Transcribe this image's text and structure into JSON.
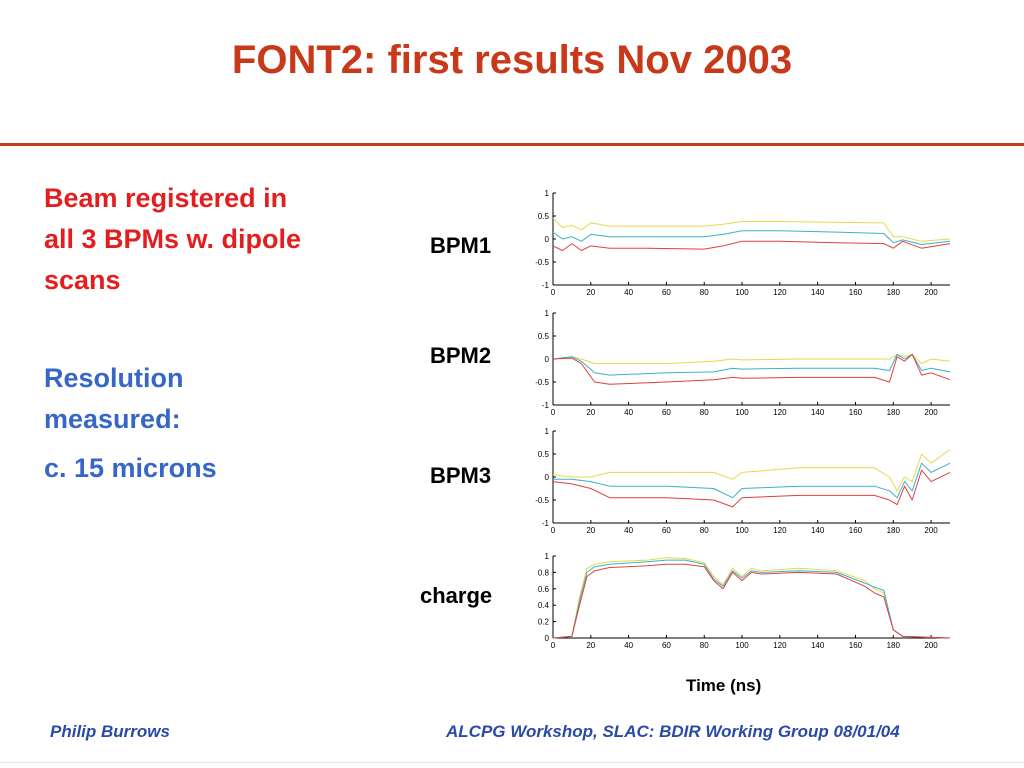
{
  "slide": {
    "title": "FONT2: first results Nov 2003",
    "bullet1": [
      "Beam registered in",
      "all 3 BPMs w. dipole",
      "scans"
    ],
    "bullet2": [
      "Resolution",
      "measured:"
    ],
    "bullet3": "c. 15 microns",
    "xlabel": "Time (ns)",
    "footer_left": "Philip Burrows",
    "footer_right": "ALCPG Workshop, SLAC: BDIR Working Group 08/01/04"
  },
  "colors": {
    "title": "#c8391a",
    "bullet_red": "#e41e1e",
    "bullet_blue": "#3767c6",
    "footer": "#2b4aa8"
  },
  "chart_data": [
    {
      "type": "line",
      "label": "BPM1",
      "xlim": [
        0,
        210
      ],
      "ylim": [
        -1,
        1
      ],
      "xticks": [
        0,
        20,
        40,
        60,
        80,
        100,
        120,
        140,
        160,
        180,
        200
      ],
      "yticks": [
        "1",
        "0.5",
        "0",
        "-0.5",
        "-1"
      ],
      "yticks_values": [
        1,
        0.5,
        0,
        -0.5,
        -1
      ],
      "series": [
        {
          "x": [
            0,
            5,
            10,
            15,
            20,
            30,
            50,
            80,
            90,
            100,
            120,
            150,
            175,
            180,
            185,
            195,
            210
          ],
          "y": [
            0.45,
            0.25,
            0.3,
            0.2,
            0.35,
            0.28,
            0.28,
            0.28,
            0.32,
            0.38,
            0.38,
            0.36,
            0.35,
            0.05,
            0.05,
            -0.05,
            0.0
          ]
        },
        {
          "x": [
            0,
            5,
            10,
            15,
            20,
            30,
            50,
            80,
            90,
            100,
            120,
            150,
            175,
            180,
            185,
            195,
            210
          ],
          "y": [
            0.15,
            0.0,
            0.05,
            -0.05,
            0.1,
            0.05,
            0.05,
            0.05,
            0.1,
            0.18,
            0.18,
            0.15,
            0.12,
            -0.08,
            -0.02,
            -0.12,
            -0.05
          ]
        },
        {
          "x": [
            0,
            5,
            10,
            15,
            20,
            30,
            50,
            80,
            90,
            100,
            120,
            150,
            175,
            180,
            185,
            195,
            210
          ],
          "y": [
            -0.15,
            -0.25,
            -0.1,
            -0.25,
            -0.15,
            -0.2,
            -0.2,
            -0.22,
            -0.15,
            -0.05,
            -0.05,
            -0.08,
            -0.1,
            -0.2,
            -0.05,
            -0.2,
            -0.1
          ]
        }
      ]
    },
    {
      "type": "line",
      "label": "BPM2",
      "xlim": [
        0,
        210
      ],
      "ylim": [
        -1,
        1
      ],
      "xticks": [
        0,
        20,
        40,
        60,
        80,
        100,
        120,
        140,
        160,
        180,
        200
      ],
      "yticks": [
        "1",
        "0.5",
        "0",
        "-0.5",
        "-1"
      ],
      "yticks_values": [
        1,
        0.5,
        0,
        -0.5,
        -1
      ],
      "series": [
        {
          "x": [
            0,
            10,
            15,
            22,
            30,
            60,
            85,
            95,
            100,
            130,
            170,
            178,
            182,
            186,
            190,
            195,
            200,
            210
          ],
          "y": [
            0.0,
            0.05,
            0.0,
            -0.1,
            -0.1,
            -0.1,
            -0.05,
            0.0,
            -0.02,
            0.0,
            0.0,
            0.0,
            0.1,
            0.05,
            0.1,
            -0.1,
            0.0,
            -0.05
          ]
        },
        {
          "x": [
            0,
            10,
            15,
            22,
            30,
            60,
            85,
            95,
            100,
            130,
            170,
            178,
            182,
            186,
            190,
            195,
            200,
            210
          ],
          "y": [
            0.0,
            0.05,
            -0.05,
            -0.3,
            -0.35,
            -0.3,
            -0.28,
            -0.2,
            -0.22,
            -0.2,
            -0.2,
            -0.25,
            0.1,
            0.0,
            0.1,
            -0.25,
            -0.2,
            -0.28
          ]
        },
        {
          "x": [
            0,
            10,
            15,
            22,
            30,
            60,
            85,
            95,
            100,
            130,
            170,
            178,
            182,
            186,
            190,
            195,
            200,
            210
          ],
          "y": [
            0.0,
            0.02,
            -0.1,
            -0.5,
            -0.55,
            -0.5,
            -0.45,
            -0.4,
            -0.42,
            -0.4,
            -0.4,
            -0.5,
            0.05,
            -0.05,
            0.1,
            -0.35,
            -0.3,
            -0.45
          ]
        }
      ]
    },
    {
      "type": "line",
      "label": "BPM3",
      "xlim": [
        0,
        210
      ],
      "ylim": [
        -1,
        1
      ],
      "xticks": [
        0,
        20,
        40,
        60,
        80,
        100,
        120,
        140,
        160,
        180,
        200
      ],
      "yticks": [
        "1",
        "0.5",
        "0",
        "-0.5",
        "-1"
      ],
      "yticks_values": [
        1,
        0.5,
        0,
        -0.5,
        -1
      ],
      "series": [
        {
          "x": [
            0,
            10,
            20,
            30,
            60,
            85,
            95,
            100,
            130,
            170,
            178,
            182,
            186,
            190,
            195,
            200,
            210
          ],
          "y": [
            0.05,
            0.0,
            0.0,
            0.1,
            0.1,
            0.1,
            -0.05,
            0.1,
            0.2,
            0.2,
            0.0,
            -0.3,
            0.0,
            -0.1,
            0.5,
            0.3,
            0.6
          ]
        },
        {
          "x": [
            0,
            10,
            20,
            30,
            60,
            85,
            95,
            100,
            130,
            170,
            178,
            182,
            186,
            190,
            195,
            200,
            210
          ],
          "y": [
            -0.05,
            -0.05,
            -0.1,
            -0.2,
            -0.2,
            -0.25,
            -0.45,
            -0.25,
            -0.2,
            -0.2,
            -0.3,
            -0.45,
            -0.1,
            -0.3,
            0.3,
            0.1,
            0.3
          ]
        },
        {
          "x": [
            0,
            10,
            20,
            30,
            60,
            85,
            95,
            100,
            130,
            170,
            178,
            182,
            186,
            190,
            195,
            200,
            210
          ],
          "y": [
            -0.1,
            -0.15,
            -0.25,
            -0.45,
            -0.45,
            -0.5,
            -0.65,
            -0.45,
            -0.4,
            -0.4,
            -0.5,
            -0.6,
            -0.2,
            -0.5,
            0.15,
            -0.1,
            0.1
          ]
        }
      ]
    },
    {
      "type": "line",
      "label": "charge",
      "xlim": [
        0,
        210
      ],
      "ylim": [
        0,
        1
      ],
      "xticks": [
        0,
        20,
        40,
        60,
        80,
        100,
        120,
        140,
        160,
        180,
        200
      ],
      "yticks": [
        "1",
        "0.8",
        "0.6",
        "0.4",
        "0.2",
        "0"
      ],
      "yticks_values": [
        1,
        0.8,
        0.6,
        0.4,
        0.2,
        0
      ],
      "series": [
        {
          "x": [
            0,
            10,
            14,
            18,
            22,
            30,
            50,
            60,
            70,
            80,
            85,
            90,
            95,
            100,
            105,
            110,
            130,
            150,
            165,
            170,
            175,
            180,
            185,
            210
          ],
          "y": [
            0.0,
            0.02,
            0.5,
            0.85,
            0.9,
            0.93,
            0.95,
            0.98,
            0.97,
            0.92,
            0.75,
            0.65,
            0.85,
            0.75,
            0.85,
            0.82,
            0.85,
            0.82,
            0.7,
            0.6,
            0.55,
            0.1,
            0.02,
            0.0
          ]
        },
        {
          "x": [
            0,
            10,
            14,
            18,
            22,
            30,
            50,
            60,
            70,
            80,
            85,
            90,
            95,
            100,
            105,
            110,
            130,
            150,
            165,
            170,
            175,
            180,
            185,
            210
          ],
          "y": [
            0.0,
            0.02,
            0.45,
            0.8,
            0.87,
            0.9,
            0.93,
            0.95,
            0.95,
            0.9,
            0.72,
            0.63,
            0.82,
            0.73,
            0.82,
            0.8,
            0.82,
            0.8,
            0.67,
            0.62,
            0.58,
            0.1,
            0.02,
            0.0
          ]
        },
        {
          "x": [
            0,
            10,
            14,
            18,
            22,
            30,
            50,
            60,
            70,
            80,
            85,
            90,
            95,
            100,
            105,
            110,
            130,
            150,
            165,
            170,
            175,
            180,
            185,
            210
          ],
          "y": [
            0.0,
            0.02,
            0.4,
            0.75,
            0.82,
            0.86,
            0.88,
            0.9,
            0.9,
            0.87,
            0.7,
            0.6,
            0.8,
            0.7,
            0.8,
            0.78,
            0.8,
            0.78,
            0.63,
            0.55,
            0.5,
            0.1,
            0.02,
            0.0
          ]
        }
      ]
    }
  ]
}
